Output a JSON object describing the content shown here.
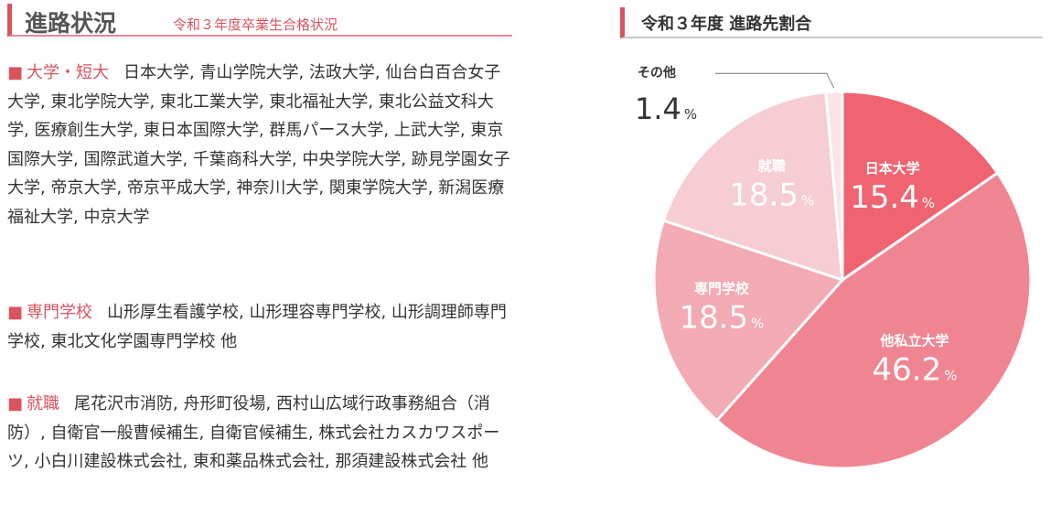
{
  "header": {
    "title": "進路状況",
    "subtitle": "令和３年度卒業生合格状況"
  },
  "sections": [
    {
      "marker": "■",
      "category": "大学・短大",
      "text": "日本大学, 青山学院大学, 法政大学, 仙台白百合女子大学, 東北学院大学, 東北工業大学, 東北福祉大学, 東北公益文科大学, 医療創生大学, 東日本国際大学, 群馬パース大学, 上武大学, 東京国際大学, 国際武道大学, 千葉商科大学, 中央学院大学, 跡見学園女子大学, 帝京大学, 帝京平成大学, 神奈川大学, 関東学院大学, 新潟医療福祉大学, 中京大学"
    },
    {
      "marker": "■",
      "category": "専門学校",
      "text": "山形厚生看護学校, 山形理容専門学校, 山形調理師専門学校, 東北文化学園専門学校 他"
    },
    {
      "marker": "■",
      "category": "就職",
      "text": "尾花沢市消防, 舟形町役場, 西村山広域行政事務組合（消防）, 自衛官一般曹候補生, 自衛官候補生, 株式会社カスカワスポーツ, 小白川建設株式会社, 東和薬品株式会社, 那須建設株式会社 他"
    }
  ],
  "chart_data": {
    "type": "pie",
    "title": "令和３年度 進路先割合",
    "unit": "%",
    "start": "12 o'clock, clockwise",
    "slices": [
      {
        "label": "日本大学",
        "value": 15.4,
        "color": "#ef6470",
        "label_position": "inside"
      },
      {
        "label": "他私立大学",
        "value": 46.2,
        "color": "#f08592",
        "label_position": "inside"
      },
      {
        "label": "専門学校",
        "value": 18.5,
        "color": "#f2aab3",
        "label_position": "inside"
      },
      {
        "label": "就職",
        "value": 18.5,
        "color": "#f6cdd2",
        "label_position": "inside"
      },
      {
        "label": "その他",
        "value": 1.4,
        "color": "#fbe4e7",
        "label_position": "outside"
      }
    ]
  }
}
